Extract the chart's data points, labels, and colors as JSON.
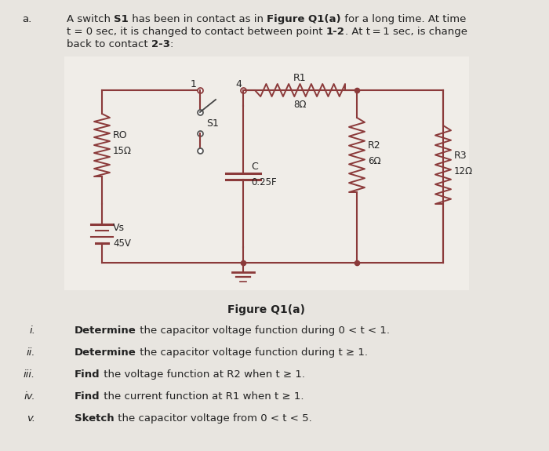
{
  "page_bg": "#e8e5e0",
  "circuit_bg": "#f0ede8",
  "line_color": "#8b3a3a",
  "text_color": "#222222",
  "title_letter": "a.",
  "figure_label": "Figure Q1(a)",
  "questions": [
    [
      "i.",
      "Determine",
      " the capacitor voltage function during 0 < t < 1."
    ],
    [
      "ii.",
      "Determine",
      " the capacitor voltage function during t ≥ 1."
    ],
    [
      "iii.",
      "Find",
      " the voltage function at R2 when t ≥ 1."
    ],
    [
      "iv.",
      "Find",
      " the current function at R1 when t ≥ 1."
    ],
    [
      "v.",
      "Sketch",
      " the capacitor voltage from 0 < t < 5."
    ]
  ],
  "header_parts": [
    [
      [
        "normal",
        "A switch "
      ],
      [
        "bold",
        "S1"
      ],
      [
        "normal",
        " has been in contact as in "
      ],
      [
        "bold",
        "Figure Q1(a)"
      ],
      [
        "normal",
        " for a long time. At time"
      ]
    ],
    [
      [
        "normal",
        "t = 0 sec, it is changed to contact between point "
      ],
      [
        "bold",
        "1-2"
      ],
      [
        "normal",
        ". At t = 1 sec, is change"
      ]
    ],
    [
      [
        "normal",
        "back to contact "
      ],
      [
        "bold",
        "2-3"
      ],
      [
        "normal",
        ":"
      ]
    ]
  ]
}
